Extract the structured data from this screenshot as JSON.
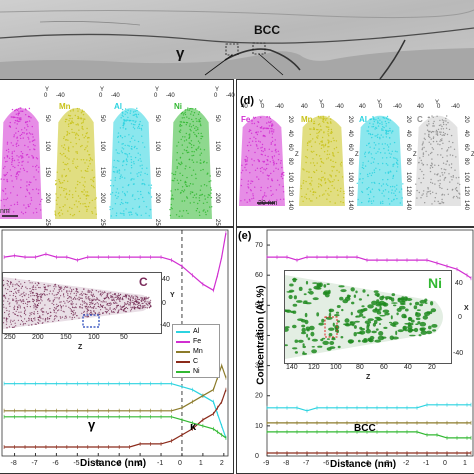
{
  "top": {
    "phase_gamma": "γ",
    "phase_bcc": "BCC"
  },
  "panel_c": {
    "tips": [
      {
        "element": "",
        "color": "#d12fd1"
      },
      {
        "element": "Mn",
        "color": "#c8c21a"
      },
      {
        "element": "Al",
        "color": "#2cd3e0"
      },
      {
        "element": "Ni",
        "color": "#32b832"
      }
    ],
    "z_ticks": [
      "50",
      "100",
      "150",
      "200",
      "250"
    ],
    "y_label": "Y",
    "y_ticks": [
      "0",
      "-40"
    ],
    "scale_text": "nm"
  },
  "panel_d": {
    "letter": "(d)",
    "tips": [
      {
        "element": "Fe",
        "color": "#d12fd1"
      },
      {
        "element": "Mn",
        "color": "#c8c21a"
      },
      {
        "element": "Al",
        "color": "#2cd3e0"
      },
      {
        "element": "C",
        "color": "#8e8e8e"
      }
    ],
    "x_ticks": [
      "40",
      "0",
      "-40"
    ],
    "y_label": "Y",
    "z_ticks": [
      "20",
      "40",
      "60",
      "80",
      "100",
      "120",
      "140"
    ],
    "z_label": "Z",
    "scale_text": "20 nm"
  },
  "panel_left_bottom": {
    "inset_element": "C",
    "inset_z_ticks": [
      "250",
      "200",
      "150",
      "100",
      "50"
    ],
    "inset_z_label": "Z",
    "inset_y_ticks": [
      "40",
      "0",
      "-40"
    ],
    "inset_y_label": "Y",
    "legend": [
      "Al",
      "Fe",
      "Mn",
      "C",
      "Ni"
    ],
    "phase_left": "γ",
    "phase_right": "κ",
    "xlabel": "Distance (nm)",
    "x_ticks": [
      "-8",
      "-7",
      "-6",
      "-5",
      "-4",
      "-3",
      "-2",
      "-1",
      "0",
      "1",
      "2"
    ]
  },
  "panel_e": {
    "letter": "(e)",
    "inset_element": "Ni",
    "inset_z_ticks": [
      "140",
      "120",
      "100",
      "80",
      "60",
      "40",
      "20"
    ],
    "inset_z_label": "Z",
    "inset_x_ticks": [
      "40",
      "0",
      "-40"
    ],
    "inset_x_label": "X",
    "phase_label": "BCC",
    "ylabel": "Concentration (At.%)",
    "xlabel": "Distance (nm)",
    "y_ticks": [
      "70",
      "60",
      "50",
      "40",
      "30",
      "20",
      "10",
      "0"
    ],
    "x_ticks": [
      "-9",
      "-8",
      "-7",
      "-6",
      "-5",
      "-4",
      "-3",
      "-2",
      "-1",
      "0",
      "1"
    ]
  },
  "chart_data": [
    {
      "type": "line",
      "xlabel": "Distance (nm)",
      "ylabel": "",
      "xlim": [
        -8.6,
        2.2
      ],
      "ylim": [
        0,
        75
      ],
      "x": [
        -8.5,
        -8,
        -7.5,
        -7,
        -6.5,
        -6,
        -5.5,
        -5,
        -4.5,
        -4,
        -3.5,
        -3,
        -2.5,
        -2,
        -1.5,
        -1,
        -0.5,
        0,
        0.5,
        1,
        1.5,
        1.7,
        1.9,
        2.1
      ],
      "series": [
        {
          "name": "Fe",
          "color": "#d12fd1",
          "values": [
            66,
            66.5,
            66,
            66,
            67,
            66,
            66,
            65,
            66,
            66,
            66,
            66,
            66,
            66,
            66,
            66,
            65,
            63,
            60,
            57,
            55,
            60,
            66,
            74
          ]
        },
        {
          "name": "Al",
          "color": "#2cd3e0",
          "values": [
            24,
            24,
            24,
            24,
            24,
            24,
            24,
            24,
            24,
            24,
            24,
            24,
            24,
            24,
            24,
            24,
            24,
            23,
            22,
            20,
            18,
            14,
            10,
            6
          ]
        },
        {
          "name": "Mn",
          "color": "#8c7b2a",
          "values": [
            15,
            15,
            15,
            15,
            15,
            15,
            15,
            15,
            15,
            15,
            15,
            15,
            15,
            15,
            15,
            15,
            15,
            16,
            18,
            20,
            22,
            26,
            30,
            26
          ]
        },
        {
          "name": "C",
          "color": "#8b2a1a",
          "values": [
            3,
            3,
            3,
            3,
            3,
            3,
            3,
            3,
            3,
            3,
            3,
            3,
            3,
            4,
            4,
            4,
            5,
            7,
            9,
            12,
            14,
            16,
            18,
            22
          ]
        },
        {
          "name": "Ni",
          "color": "#32b832",
          "values": [
            13,
            13,
            13,
            13,
            13,
            13,
            13,
            13,
            13,
            13,
            13,
            13,
            13,
            13,
            13,
            13,
            13,
            12,
            11,
            10,
            9,
            8,
            7,
            6
          ]
        }
      ]
    },
    {
      "type": "line",
      "xlabel": "Distance (nm)",
      "ylabel": "Concentration (At.%)",
      "xlim": [
        -9,
        1.3
      ],
      "ylim": [
        0,
        75
      ],
      "x": [
        -9,
        -8.5,
        -8,
        -7.5,
        -7,
        -6.5,
        -6,
        -5.5,
        -5,
        -4.5,
        -4,
        -3.5,
        -3,
        -2.5,
        -2,
        -1.5,
        -1,
        -0.5,
        0,
        0.5,
        1,
        1.2
      ],
      "series": [
        {
          "name": "Fe",
          "color": "#d12fd1",
          "values": [
            66,
            66,
            66,
            65,
            66,
            66,
            66,
            66,
            66,
            66,
            65,
            65,
            65,
            65,
            65,
            65,
            65,
            64,
            63,
            62,
            60,
            59
          ]
        },
        {
          "name": "Al",
          "color": "#2cd3e0",
          "values": [
            16,
            16,
            16,
            16,
            15,
            16,
            16,
            16,
            16,
            16,
            16,
            16,
            16,
            16,
            16,
            16,
            17,
            17,
            17,
            17,
            17,
            17
          ]
        },
        {
          "name": "Mn",
          "color": "#8c7b2a",
          "values": [
            11,
            11,
            11,
            11,
            11,
            11,
            11,
            11,
            11,
            11,
            11,
            11,
            11,
            11,
            11,
            11,
            11,
            11,
            11,
            11,
            11,
            11
          ]
        },
        {
          "name": "C",
          "color": "#8b2a1a",
          "values": [
            1,
            1,
            1,
            1,
            1,
            1,
            1,
            1,
            1,
            1,
            1,
            1,
            1,
            1,
            1,
            1,
            1,
            1,
            1,
            1,
            1,
            1
          ]
        },
        {
          "name": "Ni",
          "color": "#32b832",
          "values": [
            8,
            8,
            8,
            8,
            8,
            8,
            8,
            8,
            8,
            8,
            8,
            8,
            8,
            8,
            8,
            8,
            7,
            7,
            6,
            6,
            6,
            6
          ]
        }
      ]
    }
  ]
}
